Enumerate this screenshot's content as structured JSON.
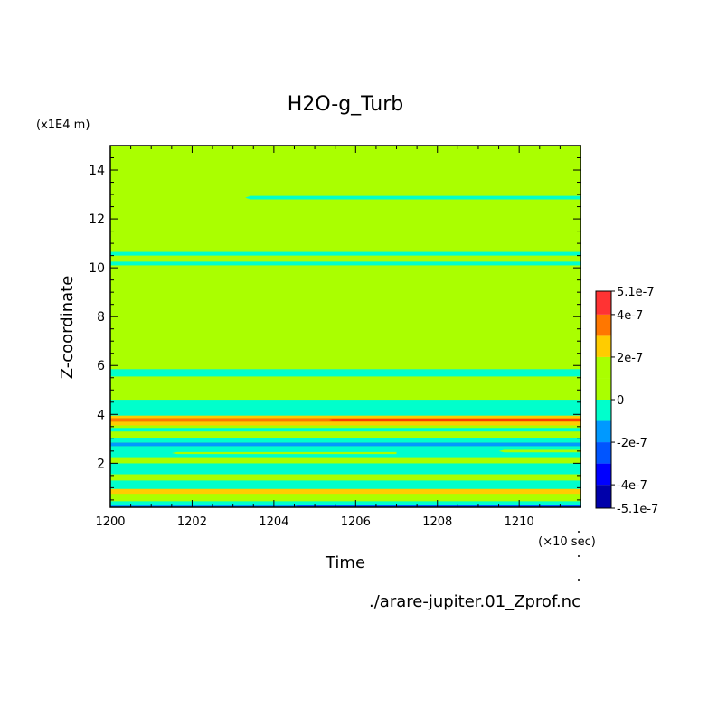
{
  "chart_data": {
    "type": "heatmap",
    "title": "H2O-g_Turb",
    "xlabel": "Time",
    "ylabel": "Z-coordinate",
    "x_unit": "(×10 sec)",
    "y_unit": "(x1E4 m)",
    "footer": "./arare-jupiter.01_Zprof.nc",
    "xlim": [
      1200,
      1211.5
    ],
    "ylim": [
      0.2,
      15
    ],
    "x_ticks": [
      {
        "value": 1200,
        "label": "1200"
      },
      {
        "value": 1202,
        "label": "1202"
      },
      {
        "value": 1204,
        "label": "1204"
      },
      {
        "value": 1206,
        "label": "1206"
      },
      {
        "value": 1208,
        "label": "1208"
      },
      {
        "value": 1210,
        "label": "1210"
      }
    ],
    "y_ticks": [
      {
        "value": 2,
        "label": "2"
      },
      {
        "value": 4,
        "label": "4"
      },
      {
        "value": 6,
        "label": "6"
      },
      {
        "value": 8,
        "label": "8"
      },
      {
        "value": 10,
        "label": "10"
      },
      {
        "value": 12,
        "label": "12"
      },
      {
        "value": 14,
        "label": "14"
      }
    ],
    "background_color": "#aaff00",
    "bands": [
      {
        "y0": 0.2,
        "y1": 0.3,
        "color": "#0099ff"
      },
      {
        "y0": 0.3,
        "y1": 0.45,
        "color": "#00ffcc"
      },
      {
        "y0": 0.45,
        "y1": 0.75,
        "color": "#aaff00"
      },
      {
        "y0": 0.75,
        "y1": 0.95,
        "color": "#ffcc00"
      },
      {
        "y0": 0.95,
        "y1": 1.3,
        "color": "#00ffcc"
      },
      {
        "y0": 1.3,
        "y1": 1.55,
        "color": "#aaff00"
      },
      {
        "y0": 1.55,
        "y1": 2.0,
        "color": "#00ffcc"
      },
      {
        "y0": 2.0,
        "y1": 2.25,
        "color": "#aaff00"
      },
      {
        "y0": 2.25,
        "y1": 2.7,
        "color": "#00ffcc"
      },
      {
        "y0": 2.7,
        "y1": 2.85,
        "color": "#0099ff"
      },
      {
        "y0": 2.85,
        "y1": 3.05,
        "color": "#00ffcc"
      },
      {
        "y0": 3.05,
        "y1": 3.3,
        "color": "#aaff00"
      },
      {
        "y0": 3.3,
        "y1": 3.45,
        "color": "#00ffcc"
      },
      {
        "y0": 3.45,
        "y1": 3.55,
        "color": "#aaff00"
      },
      {
        "y0": 3.55,
        "y1": 3.7,
        "color": "#ffcc00"
      },
      {
        "y0": 3.7,
        "y1": 3.85,
        "color": "#ff7700"
      },
      {
        "y0": 3.85,
        "y1": 3.95,
        "color": "#ffcc00"
      },
      {
        "y0": 3.95,
        "y1": 4.6,
        "color": "#00ffcc"
      },
      {
        "y0": 5.55,
        "y1": 5.85,
        "color": "#00ffcc"
      },
      {
        "y0": 10.1,
        "y1": 10.25,
        "color": "#00ffcc"
      },
      {
        "y0": 10.5,
        "y1": 10.65,
        "color": "#00ffcc"
      }
    ],
    "streaks": [
      {
        "x0": 1203.3,
        "x1": 1211.5,
        "y": 12.87,
        "h": 0.14,
        "color": "#00ffcc"
      },
      {
        "x0": 1205.3,
        "x1": 1211.5,
        "y": 3.77,
        "h": 0.1,
        "color": "#ff3300"
      },
      {
        "x0": 1201.5,
        "x1": 1207.0,
        "y": 2.42,
        "h": 0.08,
        "color": "#aaff00"
      },
      {
        "x0": 1209.5,
        "x1": 1211.5,
        "y": 2.5,
        "h": 0.1,
        "color": "#aaff00"
      },
      {
        "x0": 1204.5,
        "x1": 1211.5,
        "y": 0.25,
        "h": 0.06,
        "color": "#0055ff"
      }
    ],
    "colorbar": {
      "labels": [
        {
          "value": 5.1e-07,
          "label": "5.1e-7"
        },
        {
          "value": 4e-07,
          "label": "4e-7"
        },
        {
          "value": 2e-07,
          "label": "2e-7"
        },
        {
          "value": 0,
          "label": "0"
        },
        {
          "value": -2e-07,
          "label": "-2e-7"
        },
        {
          "value": -4e-07,
          "label": "-4e-7"
        },
        {
          "value": -5.1e-07,
          "label": "-5.1e-7"
        }
      ],
      "levels": [
        {
          "from": -5.1e-07,
          "to": -4e-07,
          "color": "#0000aa"
        },
        {
          "from": -4e-07,
          "to": -3e-07,
          "color": "#0000ff"
        },
        {
          "from": -3e-07,
          "to": -2e-07,
          "color": "#0055ff"
        },
        {
          "from": -2e-07,
          "to": -1e-07,
          "color": "#0099ff"
        },
        {
          "from": -1e-07,
          "to": 0,
          "color": "#00ffcc"
        },
        {
          "from": 0,
          "to": 1e-07,
          "color": "#aaff00"
        },
        {
          "from": 1e-07,
          "to": 2e-07,
          "color": "#aaff00"
        },
        {
          "from": 2e-07,
          "to": 3e-07,
          "color": "#ffcc00"
        },
        {
          "from": 3e-07,
          "to": 4e-07,
          "color": "#ff7700"
        },
        {
          "from": 4e-07,
          "to": 5.1e-07,
          "color": "#ff3333"
        }
      ]
    }
  }
}
